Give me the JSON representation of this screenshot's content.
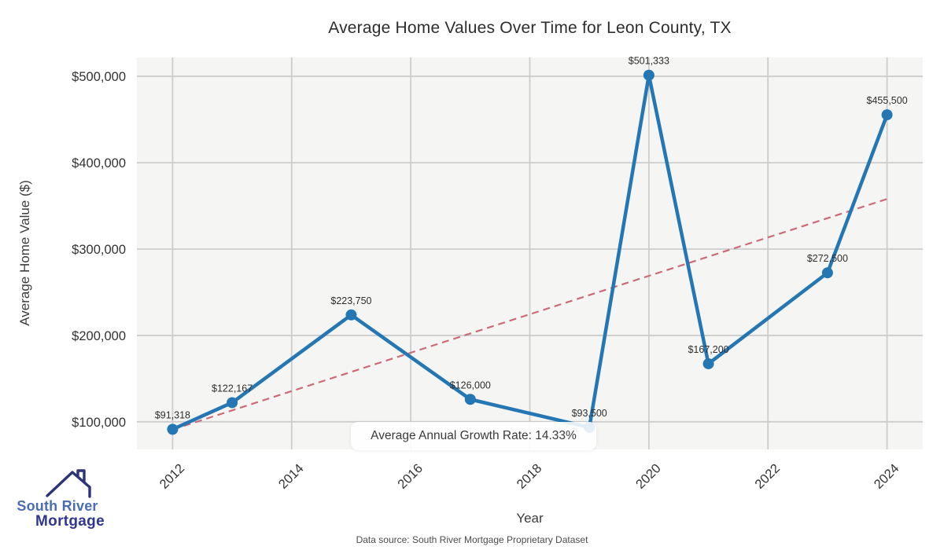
{
  "title": "Average Home Values Over Time for Leon County, TX",
  "chart_data": {
    "type": "line",
    "x": [
      2012,
      2013,
      2015,
      2017,
      2019,
      2020,
      2021,
      2023,
      2024
    ],
    "series": [
      {
        "name": "Average Home Value",
        "values": [
          91318,
          122167,
          223750,
          126000,
          93500,
          501333,
          167200,
          272500,
          455500
        ]
      }
    ],
    "point_labels": [
      "$91,318",
      "$122,167",
      "$223,750",
      "$126,000",
      "$93,500",
      "$501,333",
      "$167,200",
      "$272,500",
      "$455,500"
    ],
    "trendline": {
      "x": [
        2012,
        2024
      ],
      "values": [
        91000,
        358000
      ],
      "style": "dashed",
      "color": "#cd6a77"
    },
    "title": "Average Home Values Over Time for Leon County, TX",
    "xlabel": "Year",
    "ylabel": "Average Home Value ($)",
    "x_ticks": [
      2012,
      2014,
      2016,
      2018,
      2020,
      2022,
      2024
    ],
    "y_ticks": [
      100000,
      200000,
      300000,
      400000,
      500000
    ],
    "y_tick_labels": [
      "$100,000",
      "$200,000",
      "$300,000",
      "$400,000",
      "$500,000"
    ],
    "xlim": [
      2011.4,
      2024.6
    ],
    "ylim": [
      68000,
      522000
    ],
    "grid": true,
    "grid_color": "#cdcdcd",
    "line_color": "#2577b4",
    "marker": "circle",
    "plot_bg": "#f5f5f4",
    "legend": "none"
  },
  "annotation": {
    "text": "Average Annual Growth Rate: 14.33%"
  },
  "footer": {
    "text": "Data source: South River Mortgage Proprietary Dataset"
  },
  "logo": {
    "line1": "South River",
    "line2": "Mortgage",
    "line1_color": "#4a6db6",
    "line2_color": "#31378f",
    "roof_color": "#2d3478"
  }
}
